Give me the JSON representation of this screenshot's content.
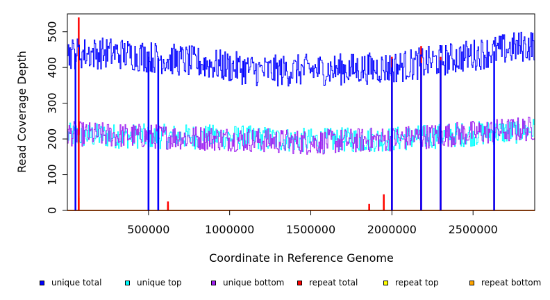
{
  "chart_data": {
    "type": "line",
    "title": "",
    "xlabel": "Coordinate in Reference Genome",
    "ylabel": "Read Coverage Depth",
    "xlim": [
      0,
      2880000
    ],
    "ylim": [
      0,
      550
    ],
    "x_ticks": [
      500000,
      1000000,
      1500000,
      2000000,
      2500000
    ],
    "x_tick_labels": [
      "500000",
      "1000000",
      "1500000",
      "2000000",
      "2500000"
    ],
    "y_ticks": [
      0,
      100,
      200,
      300,
      400,
      500
    ],
    "y_tick_labels": [
      "0",
      "100",
      "200",
      "300",
      "400",
      "500"
    ],
    "grid": false,
    "legend_position": "bottom",
    "series": [
      {
        "name": "unique total",
        "color": "#0000ff",
        "baseline": 410,
        "noise": 45,
        "trend": [
          [
            0,
            440
          ],
          [
            300000,
            440
          ],
          [
            700000,
            420
          ],
          [
            1200000,
            390
          ],
          [
            1700000,
            395
          ],
          [
            2000000,
            400
          ],
          [
            2300000,
            420
          ],
          [
            2880000,
            465
          ]
        ],
        "dips": [
          [
            50000,
            0
          ],
          [
            500000,
            0
          ],
          [
            560000,
            0
          ],
          [
            2000000,
            0
          ],
          [
            2180000,
            0
          ],
          [
            2300000,
            0
          ],
          [
            2630000,
            0
          ]
        ],
        "spikes": []
      },
      {
        "name": "unique top",
        "color": "#00ffff",
        "baseline": 210,
        "noise": 35,
        "trend": [
          [
            0,
            210
          ],
          [
            1000000,
            205
          ],
          [
            1500000,
            195
          ],
          [
            2000000,
            200
          ],
          [
            2880000,
            225
          ]
        ],
        "dips": [],
        "spikes": []
      },
      {
        "name": "unique bottom",
        "color": "#a020f0",
        "baseline": 205,
        "noise": 35,
        "trend": [
          [
            0,
            215
          ],
          [
            1000000,
            200
          ],
          [
            1500000,
            190
          ],
          [
            2000000,
            200
          ],
          [
            2880000,
            230
          ]
        ],
        "dips": [
          [
            50000,
            0
          ],
          [
            500000,
            0
          ],
          [
            560000,
            0
          ],
          [
            2000000,
            0
          ],
          [
            2180000,
            0
          ],
          [
            2300000,
            0
          ],
          [
            2630000,
            0
          ]
        ],
        "spikes": []
      },
      {
        "name": "repeat total",
        "color": "#ff0000",
        "baseline": 0,
        "noise": 0,
        "trend": [],
        "dips": [],
        "spikes": [
          [
            70000,
            540
          ],
          [
            620000,
            25
          ],
          [
            1860000,
            18
          ],
          [
            1950000,
            45
          ],
          [
            2000000,
            430
          ],
          [
            2180000,
            460
          ],
          [
            2300000,
            430
          ]
        ]
      },
      {
        "name": "repeat top",
        "color": "#ffff00",
        "baseline": 0,
        "noise": 0,
        "trend": [],
        "dips": [],
        "spikes": [
          [
            70000,
            40
          ],
          [
            1950000,
            30
          ]
        ]
      },
      {
        "name": "repeat bottom",
        "color": "#ffa500",
        "baseline": 0,
        "noise": 0,
        "trend": [],
        "dips": [],
        "spikes": [
          [
            70000,
            35
          ],
          [
            620000,
            15
          ],
          [
            1860000,
            10
          ],
          [
            1950000,
            25
          ],
          [
            2630000,
            95
          ]
        ]
      }
    ]
  }
}
